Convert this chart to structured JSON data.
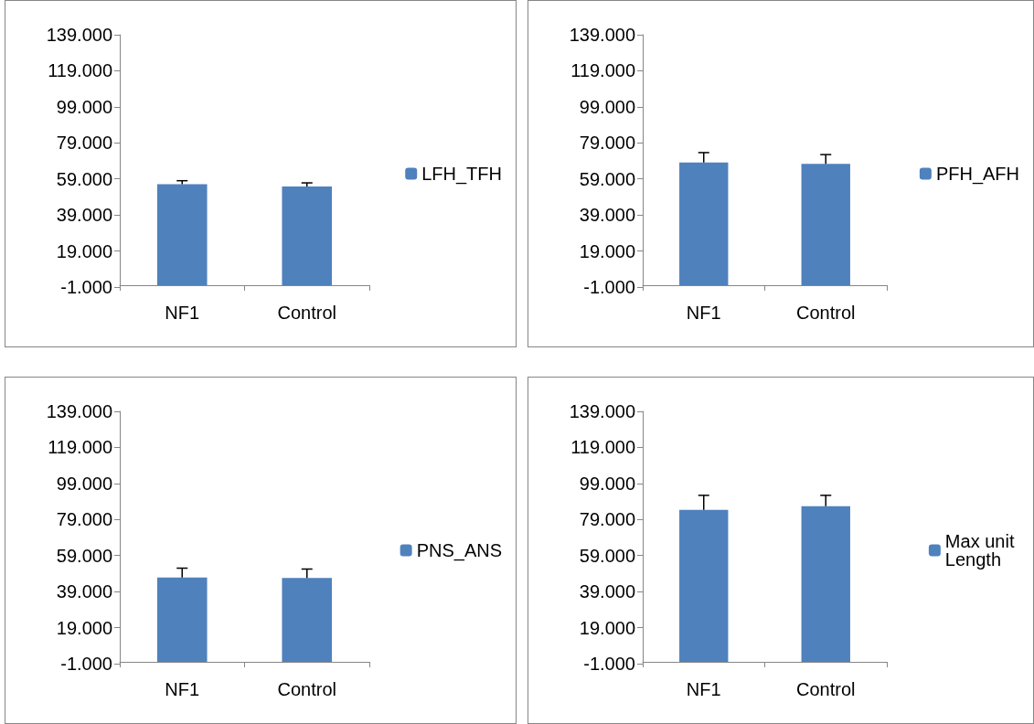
{
  "chart_data": [
    {
      "type": "bar",
      "categories": [
        "NF1",
        "Control"
      ],
      "series": [
        {
          "name": "LFH_TFH",
          "color": "#4f81bd",
          "values": [
            56.1,
            54.8
          ],
          "errors": [
            1.9,
            2.0
          ]
        }
      ],
      "ylim": [
        -1,
        139
      ],
      "yticks": [
        {
          "value": -1,
          "label": "-1.000"
        },
        {
          "value": 19,
          "label": "19.000"
        },
        {
          "value": 39,
          "label": "39.000"
        },
        {
          "value": 59,
          "label": "59.000"
        },
        {
          "value": 79,
          "label": "79.000"
        },
        {
          "value": 99,
          "label": "99.000"
        },
        {
          "value": 119,
          "label": "119.000"
        },
        {
          "value": 139,
          "label": "139.000"
        }
      ],
      "grid": false,
      "legend": "right"
    },
    {
      "type": "bar",
      "categories": [
        "NF1",
        "Control"
      ],
      "series": [
        {
          "name": "PFH_AFH",
          "color": "#4f81bd",
          "values": [
            68.1,
            67.4
          ],
          "errors": [
            5.5,
            5.1
          ]
        }
      ],
      "ylim": [
        -1,
        139
      ],
      "yticks": [
        {
          "value": -1,
          "label": "-1.000"
        },
        {
          "value": 19,
          "label": "19.000"
        },
        {
          "value": 39,
          "label": "39.000"
        },
        {
          "value": 59,
          "label": "59.000"
        },
        {
          "value": 79,
          "label": "79.000"
        },
        {
          "value": 99,
          "label": "99.000"
        },
        {
          "value": 119,
          "label": "119.000"
        },
        {
          "value": 139,
          "label": "139.000"
        }
      ],
      "grid": false,
      "legend": "right"
    },
    {
      "type": "bar",
      "categories": [
        "NF1",
        "Control"
      ],
      "series": [
        {
          "name": "PNS_ANS",
          "color": "#4f81bd",
          "values": [
            46.8,
            46.6
          ],
          "errors": [
            5.2,
            4.9
          ]
        }
      ],
      "ylim": [
        -1,
        139
      ],
      "yticks": [
        {
          "value": -1,
          "label": "-1.000"
        },
        {
          "value": 19,
          "label": "19.000"
        },
        {
          "value": 39,
          "label": "39.000"
        },
        {
          "value": 59,
          "label": "59.000"
        },
        {
          "value": 79,
          "label": "79.000"
        },
        {
          "value": 99,
          "label": "99.000"
        },
        {
          "value": 119,
          "label": "119.000"
        },
        {
          "value": 139,
          "label": "139.000"
        }
      ],
      "grid": false,
      "legend": "right"
    },
    {
      "type": "bar",
      "categories": [
        "NF1",
        "Control"
      ],
      "series": [
        {
          "name": "Max unit Length",
          "color": "#4f81bd",
          "values": [
            84.4,
            86.4
          ],
          "errors": [
            8.0,
            6.0
          ]
        }
      ],
      "ylim": [
        -1,
        139
      ],
      "yticks": [
        {
          "value": -1,
          "label": "-1.000"
        },
        {
          "value": 19,
          "label": "19.000"
        },
        {
          "value": 39,
          "label": "39.000"
        },
        {
          "value": 59,
          "label": "59.000"
        },
        {
          "value": 79,
          "label": "79.000"
        },
        {
          "value": 99,
          "label": "99.000"
        },
        {
          "value": 119,
          "label": "119.000"
        },
        {
          "value": 139,
          "label": "139.000"
        }
      ],
      "grid": false,
      "legend": "right"
    }
  ]
}
